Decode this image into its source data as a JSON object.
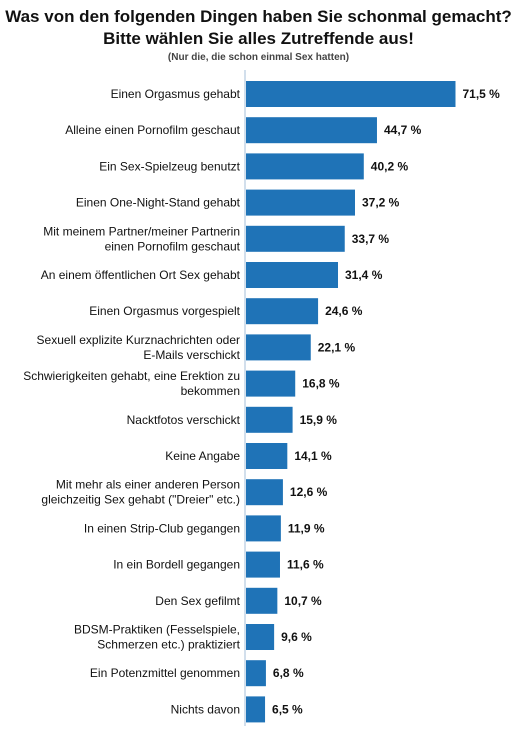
{
  "header": {
    "title_line1": "Was von den folgenden Dingen haben Sie schonmal gemacht?",
    "title_line2": "Bitte wählen Sie alles Zutreffende aus!",
    "subtitle": "(Nur die, die schon einmal Sex hatten)"
  },
  "colors": {
    "bar": "#1f73b7",
    "axis": "#a6bfd9",
    "text": "#111111"
  },
  "chart_data": {
    "type": "bar",
    "orientation": "horizontal",
    "title": "Was von den folgenden Dingen haben Sie schonmal gemacht? Bitte wählen Sie alles Zutreffende aus!",
    "subtitle": "(Nur die, die schon einmal Sex hatten)",
    "xlabel": "",
    "ylabel": "",
    "unit": "%",
    "xlim": [
      0,
      80
    ],
    "grid": false,
    "categories": [
      [
        "Einen Orgasmus gehabt"
      ],
      [
        "Alleine einen Pornofilm geschaut"
      ],
      [
        "Ein Sex-Spielzeug benutzt"
      ],
      [
        "Einen One-Night-Stand gehabt"
      ],
      [
        "Mit meinem Partner/meiner Partnerin",
        "einen Pornofilm geschaut"
      ],
      [
        "An einem öffentlichen Ort Sex gehabt"
      ],
      [
        "Einen Orgasmus vorgespielt"
      ],
      [
        "Sexuell explizite Kurznachrichten oder",
        "E-Mails verschickt"
      ],
      [
        "Schwierigkeiten gehabt, eine Erektion zu",
        "bekommen"
      ],
      [
        "Nacktfotos verschickt"
      ],
      [
        "Keine Angabe"
      ],
      [
        "Mit mehr als einer anderen Person",
        "gleichzeitig Sex gehabt (\"Dreier\" etc.)"
      ],
      [
        "In einen Strip-Club gegangen"
      ],
      [
        "In ein Bordell gegangen"
      ],
      [
        "Den Sex gefilmt"
      ],
      [
        "BDSM-Praktiken (Fesselspiele,",
        "Schmerzen etc.) praktiziert"
      ],
      [
        "Ein Potenzmittel genommen"
      ],
      [
        "Nichts davon"
      ]
    ],
    "values": [
      71.5,
      44.7,
      40.2,
      37.2,
      33.7,
      31.4,
      24.6,
      22.1,
      16.8,
      15.9,
      14.1,
      12.6,
      11.9,
      11.6,
      10.7,
      9.6,
      6.8,
      6.5
    ],
    "value_labels": [
      "71,5 %",
      "44,7 %",
      "40,2 %",
      "37,2 %",
      "33,7 %",
      "31,4 %",
      "24,6 %",
      "22,1 %",
      "16,8 %",
      "15,9 %",
      "14,1 %",
      "12,6 %",
      "11,9 %",
      "11,6 %",
      "10,7 %",
      "9,6 %",
      "6,8 %",
      "6,5 %"
    ]
  }
}
